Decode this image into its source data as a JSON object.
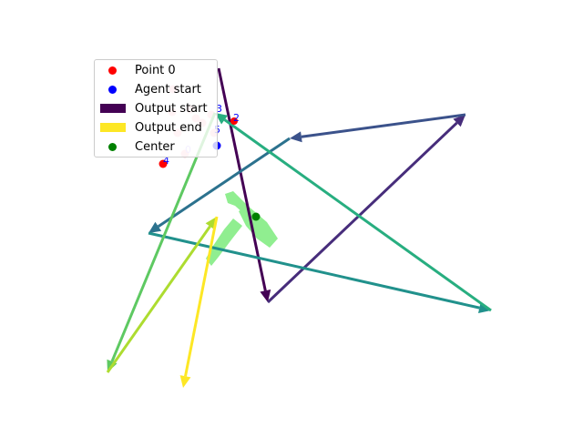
{
  "chart_data": {
    "type": "scatter",
    "title": "",
    "xlabel": "",
    "ylabel": "",
    "grid": false,
    "axes_visible": false,
    "legend": {
      "placement": "upper-left",
      "entries": [
        {
          "label": "Point 0",
          "kind": "dot",
          "color": "#ff0000"
        },
        {
          "label": "Agent start",
          "kind": "dot",
          "color": "#0000ff"
        },
        {
          "label": "Output start",
          "kind": "rect",
          "color": "#440154"
        },
        {
          "label": "Output end",
          "kind": "rect",
          "color": "#fde725"
        },
        {
          "label": "Center",
          "kind": "dot",
          "color": "#008000"
        }
      ]
    },
    "colormap": "viridis",
    "region_color": "#90ee90",
    "center_color": "#008000",
    "pink_color": "#ffc0cb",
    "number_labels": [
      "0",
      "2",
      "3",
      "4",
      "5"
    ],
    "label_colors": {
      "0": "#c8b4ff",
      "2": "#0000ff",
      "3": "#0000ff",
      "4": "#0000ff",
      "5": "#0000ff"
    }
  }
}
